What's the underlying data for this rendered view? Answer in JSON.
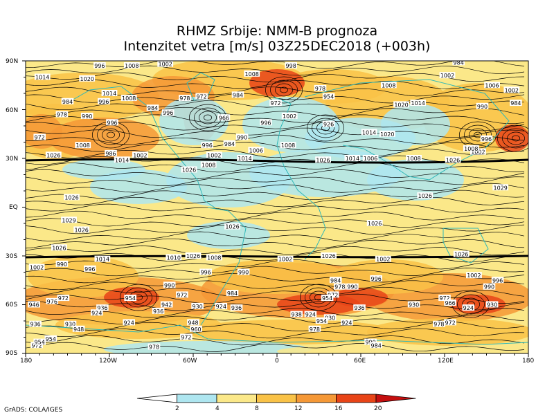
{
  "title": {
    "line1": "RHMZ Srbije: NMM-B prognoza",
    "line2": "Intenzitet vetra [m/s] 03Z25DEC2018 (+003h)"
  },
  "lat_labels": [
    "90N",
    "60N",
    "30N",
    "EQ",
    "30S",
    "60S",
    "90S"
  ],
  "lon_labels": [
    "180",
    "120W",
    "60W",
    "0",
    "60E",
    "120E",
    "180"
  ],
  "colorbar": {
    "labels": [
      "2",
      "4",
      "8",
      "12",
      "16",
      "20"
    ],
    "colors": [
      "#ffffff",
      "#aee6f0",
      "#fbe889",
      "#f9c247",
      "#f59836",
      "#e84417",
      "#c50f0f"
    ]
  },
  "footer": "GrADS: COLA/IGES",
  "pressure_labels": [
    {
      "v": "1014",
      "lon": -168,
      "lat": 80
    },
    {
      "v": "1020",
      "lon": -136,
      "lat": 79
    },
    {
      "v": "996",
      "lon": -127,
      "lat": 87
    },
    {
      "v": "1008",
      "lon": -104,
      "lat": 87
    },
    {
      "v": "1002",
      "lon": -80,
      "lat": 88
    },
    {
      "v": "998",
      "lon": 10,
      "lat": 87
    },
    {
      "v": "1008",
      "lon": -18,
      "lat": 82
    },
    {
      "v": "1002",
      "lon": 122,
      "lat": 81
    },
    {
      "v": "984",
      "lon": 130,
      "lat": 89
    },
    {
      "v": "1008",
      "lon": 80,
      "lat": 75
    },
    {
      "v": "1006",
      "lon": 154,
      "lat": 75
    },
    {
      "v": "1002",
      "lon": 168,
      "lat": 72
    },
    {
      "v": "1014",
      "lon": -120,
      "lat": 70
    },
    {
      "v": "1008",
      "lon": -106,
      "lat": 67
    },
    {
      "v": "984",
      "lon": -150,
      "lat": 65
    },
    {
      "v": "996",
      "lon": -124,
      "lat": 65
    },
    {
      "v": "978",
      "lon": -154,
      "lat": 57
    },
    {
      "v": "990",
      "lon": -136,
      "lat": 56
    },
    {
      "v": "996",
      "lon": -118,
      "lat": 52
    },
    {
      "v": "984",
      "lon": -89,
      "lat": 61
    },
    {
      "v": "978",
      "lon": -66,
      "lat": 67
    },
    {
      "v": "972",
      "lon": -54,
      "lat": 68
    },
    {
      "v": "996",
      "lon": -78,
      "lat": 58
    },
    {
      "v": "966",
      "lon": -38,
      "lat": 55
    },
    {
      "v": "984",
      "lon": -28,
      "lat": 69
    },
    {
      "v": "972",
      "lon": -1,
      "lat": 64
    },
    {
      "v": "978",
      "lon": 31,
      "lat": 73
    },
    {
      "v": "954",
      "lon": 37,
      "lat": 68
    },
    {
      "v": "1002",
      "lon": 9,
      "lat": 56
    },
    {
      "v": "996",
      "lon": -8,
      "lat": 52
    },
    {
      "v": "990",
      "lon": -25,
      "lat": 43
    },
    {
      "v": "984",
      "lon": -34,
      "lat": 39
    },
    {
      "v": "996",
      "lon": -50,
      "lat": 38
    },
    {
      "v": "1002",
      "lon": -45,
      "lat": 32
    },
    {
      "v": "1008",
      "lon": 8,
      "lat": 38
    },
    {
      "v": "926",
      "lon": 37,
      "lat": 51
    },
    {
      "v": "1014",
      "lon": 66,
      "lat": 46
    },
    {
      "v": "1020",
      "lon": 79,
      "lat": 45
    },
    {
      "v": "1020",
      "lon": 89,
      "lat": 63
    },
    {
      "v": "1014",
      "lon": 101,
      "lat": 64
    },
    {
      "v": "990",
      "lon": 147,
      "lat": 62
    },
    {
      "v": "984",
      "lon": 171,
      "lat": 64
    },
    {
      "v": "996",
      "lon": 150,
      "lat": 42
    },
    {
      "v": "972",
      "lon": -170,
      "lat": 43
    },
    {
      "v": "1008",
      "lon": -139,
      "lat": 38
    },
    {
      "v": "1026",
      "lon": -160,
      "lat": 32
    },
    {
      "v": "1008",
      "lon": -49,
      "lat": 26
    },
    {
      "v": "1026",
      "lon": -63,
      "lat": 23
    },
    {
      "v": "1014",
      "lon": -23,
      "lat": 30
    },
    {
      "v": "1006",
      "lon": -15,
      "lat": 35
    },
    {
      "v": "1026",
      "lon": 33,
      "lat": 29
    },
    {
      "v": "1014",
      "lon": 54,
      "lat": 30
    },
    {
      "v": "1006",
      "lon": 67,
      "lat": 30
    },
    {
      "v": "1008",
      "lon": 98,
      "lat": 30
    },
    {
      "v": "1026",
      "lon": 126,
      "lat": 29
    },
    {
      "v": "1002",
      "lon": 144,
      "lat": 34
    },
    {
      "v": "1008",
      "lon": 139,
      "lat": 36
    },
    {
      "v": "1014",
      "lon": -111,
      "lat": 29
    },
    {
      "v": "1002",
      "lon": -98,
      "lat": 32
    },
    {
      "v": "986",
      "lon": -119,
      "lat": 33
    },
    {
      "v": "1029",
      "lon": 160,
      "lat": 12
    },
    {
      "v": "1026",
      "lon": 106,
      "lat": 7
    },
    {
      "v": "1026",
      "lon": -147,
      "lat": 6
    },
    {
      "v": "1029",
      "lon": -149,
      "lat": -8
    },
    {
      "v": "1026",
      "lon": -140,
      "lat": -14
    },
    {
      "v": "1026",
      "lon": -32,
      "lat": -12
    },
    {
      "v": "1026",
      "lon": 70,
      "lat": -10
    },
    {
      "v": "1026",
      "lon": -156,
      "lat": -25
    },
    {
      "v": "1014",
      "lon": -125,
      "lat": -32
    },
    {
      "v": "1010",
      "lon": -74,
      "lat": -31
    },
    {
      "v": "1026",
      "lon": -60,
      "lat": -30
    },
    {
      "v": "1008",
      "lon": -45,
      "lat": -31
    },
    {
      "v": "1002",
      "lon": 6,
      "lat": -32
    },
    {
      "v": "1026",
      "lon": 37,
      "lat": -30
    },
    {
      "v": "1002",
      "lon": 76,
      "lat": -32
    },
    {
      "v": "1026",
      "lon": 132,
      "lat": -29
    },
    {
      "v": "1002",
      "lon": -172,
      "lat": -37
    },
    {
      "v": "990",
      "lon": -154,
      "lat": -35
    },
    {
      "v": "996",
      "lon": -134,
      "lat": -38
    },
    {
      "v": "996",
      "lon": -51,
      "lat": -40
    },
    {
      "v": "990",
      "lon": -24,
      "lat": -40
    },
    {
      "v": "996",
      "lon": 71,
      "lat": -44
    },
    {
      "v": "984",
      "lon": 42,
      "lat": -45
    },
    {
      "v": "978",
      "lon": 45,
      "lat": -49
    },
    {
      "v": "990",
      "lon": 54,
      "lat": -49
    },
    {
      "v": "1002",
      "lon": 141,
      "lat": -42
    },
    {
      "v": "996",
      "lon": 158,
      "lat": -45
    },
    {
      "v": "990",
      "lon": 152,
      "lat": -49
    },
    {
      "v": "990",
      "lon": -77,
      "lat": -48
    },
    {
      "v": "972",
      "lon": -68,
      "lat": -54
    },
    {
      "v": "984",
      "lon": -32,
      "lat": -53
    },
    {
      "v": "936",
      "lon": -29,
      "lat": -62
    },
    {
      "v": "930",
      "lon": -57,
      "lat": -61
    },
    {
      "v": "924",
      "lon": -40,
      "lat": -61
    },
    {
      "v": "942",
      "lon": -79,
      "lat": -60
    },
    {
      "v": "972",
      "lon": -153,
      "lat": -56
    },
    {
      "v": "976",
      "lon": -161,
      "lat": -58
    },
    {
      "v": "946",
      "lon": -174,
      "lat": -60
    },
    {
      "v": "936",
      "lon": -125,
      "lat": -62
    },
    {
      "v": "924",
      "lon": -129,
      "lat": -65
    },
    {
      "v": "954",
      "lon": -105,
      "lat": -56
    },
    {
      "v": "936",
      "lon": -85,
      "lat": -64
    },
    {
      "v": "924",
      "lon": -106,
      "lat": -71
    },
    {
      "v": "930",
      "lon": -148,
      "lat": -72
    },
    {
      "v": "948",
      "lon": -142,
      "lat": -75
    },
    {
      "v": "948",
      "lon": -60,
      "lat": -71
    },
    {
      "v": "960",
      "lon": -58,
      "lat": -75
    },
    {
      "v": "972",
      "lon": -65,
      "lat": -80
    },
    {
      "v": "936",
      "lon": -173,
      "lat": -72
    },
    {
      "v": "954",
      "lon": -162,
      "lat": -81
    },
    {
      "v": "972",
      "lon": -172,
      "lat": -85
    },
    {
      "v": "978",
      "lon": -88,
      "lat": -86
    },
    {
      "v": "972",
      "lon": 40,
      "lat": -54
    },
    {
      "v": "954",
      "lon": 36,
      "lat": -56
    },
    {
      "v": "936",
      "lon": 59,
      "lat": -62
    },
    {
      "v": "924",
      "lon": 24,
      "lat": -66
    },
    {
      "v": "930",
      "lon": 38,
      "lat": -68
    },
    {
      "v": "954",
      "lon": 32,
      "lat": -70
    },
    {
      "v": "924",
      "lon": 50,
      "lat": -71
    },
    {
      "v": "938",
      "lon": 14,
      "lat": -66
    },
    {
      "v": "978",
      "lon": 27,
      "lat": -75
    },
    {
      "v": "930",
      "lon": 98,
      "lat": -60
    },
    {
      "v": "972",
      "lon": 120,
      "lat": -56
    },
    {
      "v": "966",
      "lon": 124,
      "lat": -59
    },
    {
      "v": "924",
      "lon": 137,
      "lat": -62
    },
    {
      "v": "930",
      "lon": 154,
      "lat": -60
    },
    {
      "v": "972",
      "lon": 124,
      "lat": -71
    },
    {
      "v": "978",
      "lon": 116,
      "lat": -72
    },
    {
      "v": "990",
      "lon": 67,
      "lat": -83
    },
    {
      "v": "984",
      "lon": 71,
      "lat": -85
    },
    {
      "v": "954",
      "lon": -170,
      "lat": -83
    }
  ]
}
